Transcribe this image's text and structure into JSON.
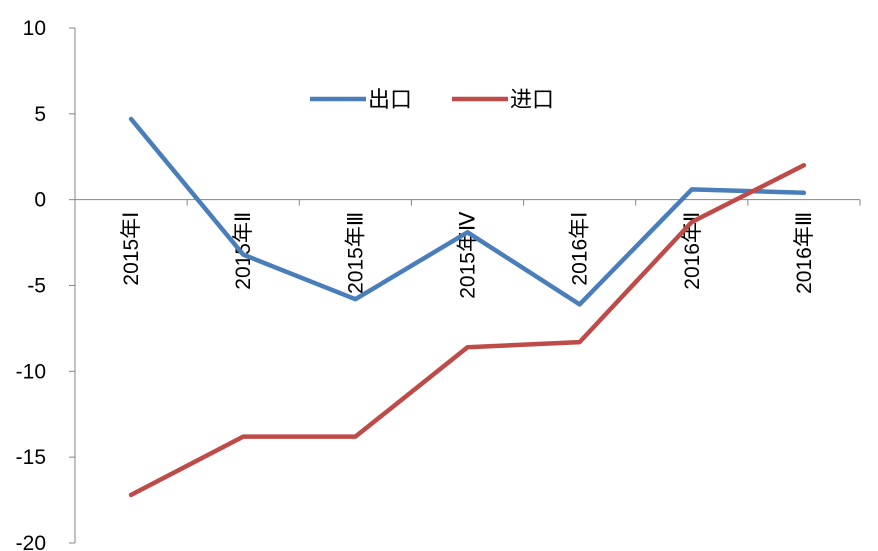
{
  "chart_data": {
    "type": "line",
    "categories": [
      "2015年Ⅰ",
      "2015年Ⅱ",
      "2015年Ⅲ",
      "2015年Ⅳ",
      "2016年Ⅰ",
      "2016年Ⅱ",
      "2016年Ⅲ"
    ],
    "series": [
      {
        "name": "出口",
        "values": [
          4.7,
          -3.2,
          -5.8,
          -1.9,
          -6.1,
          0.6,
          0.4
        ],
        "color": "#4a7ebb"
      },
      {
        "name": "进口",
        "values": [
          -17.2,
          -13.8,
          -13.8,
          -8.6,
          -8.3,
          -1.3,
          2.0
        ],
        "color": "#be4b48"
      }
    ],
    "ylim": [
      -20,
      10
    ],
    "yticks": [
      10,
      5,
      0,
      -5,
      -10,
      -15,
      -20
    ],
    "legend_position": "top-center",
    "grid": false
  }
}
